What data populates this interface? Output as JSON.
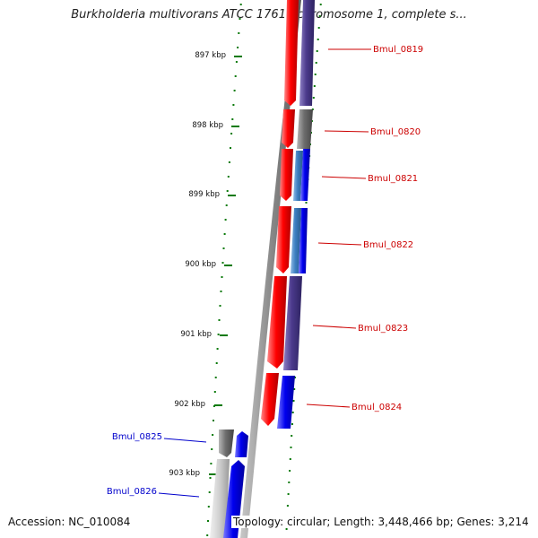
{
  "title": "Burkholderia multivorans ATCC 17616 chromosome 1, complete s...",
  "accession": "Accession: NC_010084",
  "summary": "Topology: circular; Length: 3,448,466 bp; Genes: 3,214",
  "scale_labels": [
    "897 kbp",
    "898 kbp",
    "899 kbp",
    "900 kbp",
    "901 kbp",
    "902 kbp",
    "903 kbp"
  ],
  "genes": [
    {
      "name": "Bmul_0819",
      "color": "#cc0000"
    },
    {
      "name": "Bmul_0820",
      "color": "#cc0000"
    },
    {
      "name": "Bmul_0821",
      "color": "#cc0000"
    },
    {
      "name": "Bmul_0822",
      "color": "#cc0000"
    },
    {
      "name": "Bmul_0823",
      "color": "#cc0000"
    },
    {
      "name": "Bmul_0824",
      "color": "#cc0000"
    },
    {
      "name": "Bmul_0825",
      "color": "#0000cc"
    },
    {
      "name": "Bmul_0826",
      "color": "#0000cc"
    }
  ],
  "colors": {
    "tick": "#0a7a0a",
    "cds_red": "#ff0000",
    "cds_blue": "#0000ee",
    "cds_purple": "#4b3a8c",
    "cds_gray": "#6e6e6e",
    "cds_light_blue": "#3c7ec0",
    "backbone": "#8a8a8a"
  }
}
